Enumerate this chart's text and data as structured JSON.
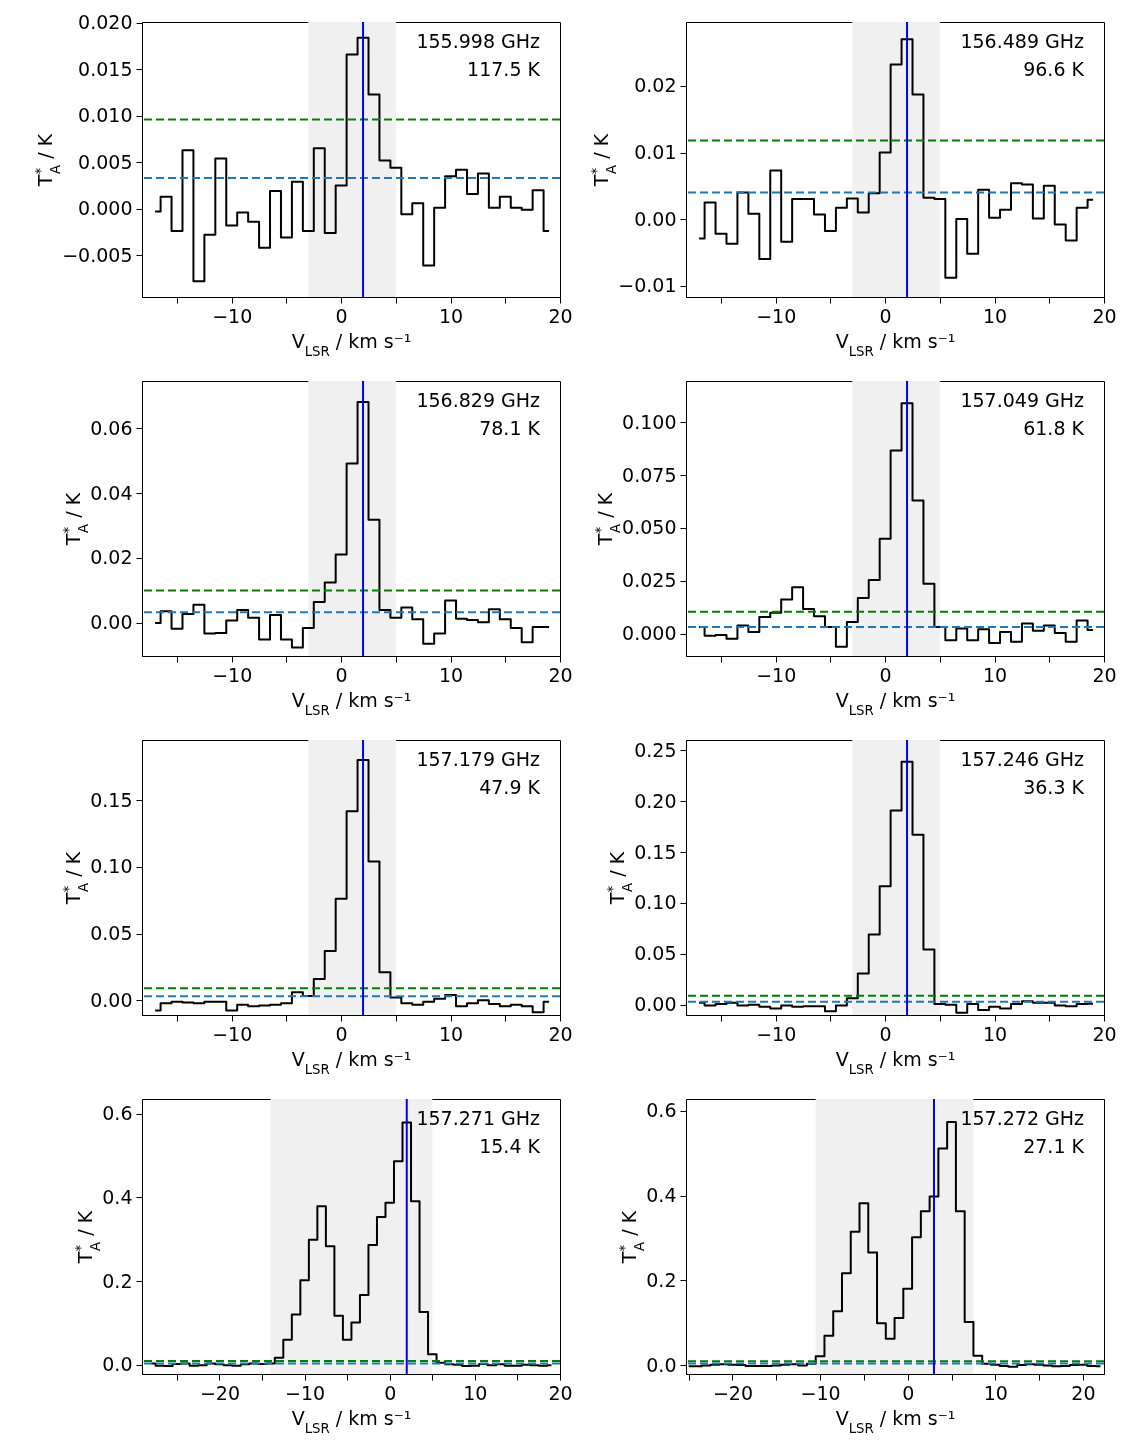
{
  "chart_data": [
    {
      "type": "step",
      "annotations": [
        "155.998 GHz",
        "117.5 K"
      ],
      "xlabel": "V$_{LSR}$ / km s⁻¹",
      "ylabel": "T$^{*}$$_{A}$ / K",
      "x": [
        -17,
        -16,
        -15,
        -14,
        -13,
        -12,
        -11,
        -10,
        -9,
        -8,
        -7,
        -6,
        -5,
        -4,
        -3,
        -2,
        -1,
        0,
        1,
        2,
        3,
        4,
        5,
        6,
        7,
        8,
        9,
        10,
        11,
        12,
        13,
        14,
        15,
        16,
        17,
        18,
        19
      ],
      "series": [
        {
          "color": "#000000",
          "values": [
            -0.0003,
            0.0013,
            -0.0024,
            0.0063,
            -0.0078,
            -0.0028,
            0.0054,
            -0.0018,
            -0.0004,
            -0.0014,
            -0.0042,
            0.0019,
            -0.0031,
            0.0029,
            -0.0024,
            0.0065,
            -0.0026,
            0.0025,
            0.0166,
            0.0184,
            0.0123,
            0.0052,
            0.0044,
            -0.0006,
            0.0006,
            -0.0061,
            0.0001,
            0.0035,
            0.0042,
            0.0016,
            0.0038,
            0.0001,
            0.0013,
            0.0001,
            -0.0001,
            0.002,
            -0.0024
          ]
        }
      ],
      "xlim": [
        -18.2,
        20
      ],
      "ylim": [
        -0.0095,
        0.0201
      ],
      "xticks": [
        {
          "value": -15,
          "label": null
        },
        {
          "value": -10,
          "label": "−10"
        },
        {
          "value": -5,
          "label": null
        },
        0,
        {
          "value": 5,
          "label": null
        },
        10,
        {
          "value": 15,
          "label": null
        },
        20
      ],
      "yticks": [
        {
          "value": -0.005,
          "label": "−0.005"
        },
        {
          "value": 0,
          "label": "0.000"
        },
        {
          "value": 0.005,
          "label": "0.005"
        },
        {
          "value": 0.01,
          "label": "0.010"
        },
        {
          "value": 0.015,
          "label": "0.015"
        },
        {
          "value": 0.02,
          "label": "0.020"
        }
      ],
      "bands": [
        {
          "axis": "x",
          "from": -3,
          "to": 5,
          "color": "#f0f0f0"
        }
      ],
      "ref_lines": [
        {
          "axis": "y",
          "value": 0.0096,
          "color": "#008000",
          "line_style": "dashed"
        },
        {
          "axis": "y",
          "value": 0.0033,
          "color": "#1f77b4",
          "line_style": "dashed"
        },
        {
          "axis": "x",
          "value": 2,
          "color": "#0000ff",
          "line_style": "solid"
        }
      ]
    },
    {
      "type": "step",
      "annotations": [
        "156.489 GHz",
        "96.6 K"
      ],
      "xlabel": "V$_{LSR}$ / km s⁻¹",
      "ylabel": "T$^{*}$$_{A}$ / K",
      "x": [
        -17,
        -16,
        -15,
        -14,
        -13,
        -12,
        -11,
        -10,
        -9,
        -8,
        -7,
        -6,
        -5,
        -4,
        -3,
        -2,
        -1,
        0,
        1,
        2,
        3,
        4,
        5,
        6,
        7,
        8,
        9,
        10,
        11,
        12,
        13,
        14,
        15,
        16,
        17,
        18,
        19
      ],
      "series": [
        {
          "color": "#000000",
          "values": [
            -0.0029,
            0.0025,
            -0.0022,
            -0.0037,
            0.004,
            0.0008,
            -0.006,
            0.0073,
            -0.0034,
            0.003,
            0.003,
            0.0007,
            -0.0018,
            0.0017,
            0.0031,
            0.001,
            0.0039,
            0.01,
            0.0232,
            0.027,
            0.0187,
            0.0032,
            0.003,
            -0.0088,
            0.0,
            -0.0052,
            0.0044,
            0.0002,
            0.0014,
            0.0054,
            0.0052,
            0.0001,
            0.005,
            -0.0008,
            -0.0032,
            0.0017,
            0.0029
          ]
        }
      ],
      "xlim": [
        -18.2,
        20
      ],
      "ylim": [
        -0.0117,
        0.0296
      ],
      "xticks": [
        {
          "value": -15,
          "label": null
        },
        {
          "value": -10,
          "label": "−10"
        },
        {
          "value": -5,
          "label": null
        },
        0,
        {
          "value": 5,
          "label": null
        },
        10,
        {
          "value": 15,
          "label": null
        },
        20
      ],
      "yticks": [
        {
          "value": -0.01,
          "label": "−0.01"
        },
        {
          "value": 0,
          "label": "0.00"
        },
        {
          "value": 0.01,
          "label": "0.01"
        },
        {
          "value": 0.02,
          "label": "0.02"
        }
      ],
      "bands": [
        {
          "axis": "x",
          "from": -3,
          "to": 5,
          "color": "#f0f0f0"
        }
      ],
      "ref_lines": [
        {
          "axis": "y",
          "value": 0.0118,
          "color": "#008000",
          "line_style": "dashed"
        },
        {
          "axis": "y",
          "value": 0.004,
          "color": "#1f77b4",
          "line_style": "dashed"
        },
        {
          "axis": "x",
          "value": 2,
          "color": "#0000ff",
          "line_style": "solid"
        }
      ]
    },
    {
      "type": "step",
      "annotations": [
        "156.829 GHz",
        "78.1 K"
      ],
      "xlabel": "V$_{LSR}$ / km s⁻¹",
      "ylabel": "T$^{*}$$_{A}$ / K",
      "x": [
        -17,
        -16,
        -15,
        -14,
        -13,
        -12,
        -11,
        -10,
        -9,
        -8,
        -7,
        -6,
        -5,
        -4,
        -3,
        -2,
        -1,
        0,
        1,
        2,
        3,
        4,
        5,
        6,
        7,
        8,
        9,
        10,
        11,
        12,
        13,
        14,
        15,
        16,
        17,
        18,
        19
      ],
      "series": [
        {
          "color": "#000000",
          "values": [
            0.0,
            0.0036,
            -0.0018,
            0.0027,
            0.0056,
            -0.0033,
            -0.0031,
            0.0007,
            0.004,
            0.0016,
            -0.0051,
            0.0024,
            -0.0051,
            -0.0076,
            -0.0016,
            0.0064,
            0.0124,
            0.0211,
            0.0491,
            0.068,
            0.0318,
            0.004,
            0.0016,
            0.0047,
            0.0011,
            -0.0064,
            -0.0033,
            0.0069,
            0.0013,
            0.0009,
            0.0002,
            0.0042,
            0.0011,
            -0.0016,
            -0.006,
            -0.0013,
            -0.0013
          ]
        }
      ],
      "xlim": [
        -18.2,
        20
      ],
      "ylim": [
        -0.0102,
        0.0745
      ],
      "xticks": [
        {
          "value": -15,
          "label": null
        },
        {
          "value": -10,
          "label": "−10"
        },
        {
          "value": -5,
          "label": null
        },
        0,
        {
          "value": 5,
          "label": null
        },
        10,
        {
          "value": 15,
          "label": null
        },
        20
      ],
      "yticks": [
        {
          "value": 0,
          "label": "0.00"
        },
        {
          "value": 0.02,
          "label": "0.02"
        },
        {
          "value": 0.04,
          "label": "0.04"
        },
        {
          "value": 0.06,
          "label": "0.06"
        }
      ],
      "bands": [
        {
          "axis": "x",
          "from": -3,
          "to": 5,
          "color": "#f0f0f0"
        }
      ],
      "ref_lines": [
        {
          "axis": "y",
          "value": 0.01,
          "color": "#008000",
          "line_style": "dashed"
        },
        {
          "axis": "y",
          "value": 0.0033,
          "color": "#1f77b4",
          "line_style": "dashed"
        },
        {
          "axis": "x",
          "value": 2,
          "color": "#0000ff",
          "line_style": "solid"
        }
      ]
    },
    {
      "type": "step",
      "annotations": [
        "157.049 GHz",
        "61.8 K"
      ],
      "xlabel": "V$_{LSR}$ / km s⁻¹",
      "ylabel": "T$^{*}$$_{A}$ / K",
      "x": [
        -17,
        -16,
        -15,
        -14,
        -13,
        -12,
        -11,
        -10,
        -9,
        -8,
        -7,
        -6,
        -5,
        -4,
        -3,
        -2,
        -1,
        0,
        1,
        2,
        3,
        4,
        5,
        6,
        7,
        8,
        9,
        10,
        11,
        12,
        13,
        14,
        15,
        16,
        17,
        18,
        19
      ],
      "series": [
        {
          "color": "#000000",
          "values": [
            0.0031,
            -0.001,
            -0.0007,
            -0.0024,
            0.0038,
            0.0007,
            0.0079,
            0.0099,
            0.0161,
            0.0219,
            0.0116,
            0.0082,
            0.0031,
            -0.0062,
            0.0055,
            0.0168,
            0.0253,
            0.0449,
            0.0866,
            0.109,
            0.063,
            0.0236,
            0.0031,
            -0.0031,
            0.0024,
            -0.0031,
            0.0021,
            -0.0045,
            0.0007,
            -0.0038,
            0.0048,
            0.0014,
            0.0038,
            0.0003,
            -0.0038,
            0.0062,
            0.0017
          ]
        }
      ],
      "xlim": [
        -18.2,
        20
      ],
      "ylim": [
        -0.0106,
        0.1195
      ],
      "xticks": [
        {
          "value": -15,
          "label": null
        },
        {
          "value": -10,
          "label": "−10"
        },
        {
          "value": -5,
          "label": null
        },
        0,
        {
          "value": 5,
          "label": null
        },
        10,
        {
          "value": 15,
          "label": null
        },
        20
      ],
      "yticks": [
        {
          "value": 0,
          "label": "0.000"
        },
        {
          "value": 0.025,
          "label": "0.025"
        },
        {
          "value": 0.05,
          "label": "0.050"
        },
        {
          "value": 0.075,
          "label": "0.075"
        },
        {
          "value": 0.1,
          "label": "0.100"
        }
      ],
      "bands": [
        {
          "axis": "x",
          "from": -3,
          "to": 5,
          "color": "#f0f0f0"
        }
      ],
      "ref_lines": [
        {
          "axis": "y",
          "value": 0.0103,
          "color": "#008000",
          "line_style": "dashed"
        },
        {
          "axis": "y",
          "value": 0.0031,
          "color": "#1f77b4",
          "line_style": "dashed"
        },
        {
          "axis": "x",
          "value": 2,
          "color": "#0000ff",
          "line_style": "solid"
        }
      ]
    },
    {
      "type": "step",
      "annotations": [
        "157.179 GHz",
        "47.9 K"
      ],
      "xlabel": "V$_{LSR}$ / km s⁻¹",
      "ylabel": "T$^{*}$$_{A}$ / K",
      "x": [
        -17,
        -16,
        -15,
        -14,
        -13,
        -12,
        -11,
        -10,
        -9,
        -8,
        -7,
        -6,
        -5,
        -4,
        -3,
        -2,
        -1,
        0,
        1,
        2,
        3,
        4,
        5,
        6,
        7,
        8,
        9,
        10,
        11,
        12,
        13,
        14,
        15,
        16,
        17,
        18,
        19
      ],
      "series": [
        {
          "color": "#000000",
          "values": [
            -0.0077,
            -0.0022,
            -0.0011,
            -0.0017,
            -0.0022,
            -0.0011,
            -0.0011,
            -0.0077,
            -0.0033,
            -0.0044,
            -0.0039,
            -0.0033,
            -0.0022,
            0.0061,
            0.0033,
            0.016,
            0.037,
            0.076,
            0.1417,
            0.18,
            0.104,
            0.021,
            0.0022,
            -0.0022,
            -0.0033,
            -0.0011,
            0.0011,
            0.0039,
            -0.0044,
            -0.0022,
            0.0,
            -0.0028,
            -0.0044,
            -0.0033,
            -0.0044,
            -0.009,
            -0.001
          ]
        }
      ],
      "xlim": [
        -18.2,
        20
      ],
      "ylim": [
        -0.011,
        0.195
      ],
      "xticks": [
        {
          "value": -15,
          "label": null
        },
        {
          "value": -10,
          "label": "−10"
        },
        {
          "value": -5,
          "label": null
        },
        0,
        {
          "value": 5,
          "label": null
        },
        10,
        {
          "value": 15,
          "label": null
        },
        20
      ],
      "yticks": [
        {
          "value": 0,
          "label": "0.00"
        },
        {
          "value": 0.05,
          "label": "0.05"
        },
        {
          "value": 0.1,
          "label": "0.10"
        },
        {
          "value": 0.15,
          "label": "0.15"
        }
      ],
      "bands": [
        {
          "axis": "x",
          "from": -3,
          "to": 5,
          "color": "#f0f0f0"
        }
      ],
      "ref_lines": [
        {
          "axis": "y",
          "value": 0.009,
          "color": "#008000",
          "line_style": "dashed"
        },
        {
          "axis": "y",
          "value": 0.003,
          "color": "#1f77b4",
          "line_style": "dashed"
        },
        {
          "axis": "x",
          "value": 2,
          "color": "#0000ff",
          "line_style": "solid"
        }
      ]
    },
    {
      "type": "step",
      "annotations": [
        "157.246 GHz",
        "36.3 K"
      ],
      "xlabel": "V$_{LSR}$ / km s⁻¹",
      "ylabel": "T$^{*}$$_{A}$ / K",
      "x": [
        -17,
        -16,
        -15,
        -14,
        -13,
        -12,
        -11,
        -10,
        -9,
        -8,
        -7,
        -6,
        -5,
        -4,
        -3,
        -2,
        -1,
        0,
        1,
        2,
        3,
        4,
        5,
        6,
        7,
        8,
        9,
        10,
        11,
        12,
        13,
        14,
        15,
        16,
        17,
        18,
        19
      ],
      "series": [
        {
          "color": "#000000",
          "values": [
            0.002,
            -0.0007,
            0.0007,
            0.002,
            -0.0007,
            0.0,
            -0.002,
            -0.0036,
            -0.0007,
            -0.002,
            -0.0014,
            -0.0014,
            -0.0064,
            -0.0007,
            0.0064,
            0.0307,
            0.069,
            0.1164,
            0.1907,
            0.2386,
            0.167,
            0.0543,
            0.0007,
            0.0,
            -0.0079,
            0.0007,
            -0.005,
            -0.002,
            -0.0036,
            0.0007,
            0.0036,
            0.002,
            0.002,
            -0.0007,
            -0.0014,
            0.0007,
            0.001
          ]
        }
      ],
      "xlim": [
        -18.2,
        20
      ],
      "ylim": [
        -0.01,
        0.26
      ],
      "xticks": [
        {
          "value": -15,
          "label": null
        },
        {
          "value": -10,
          "label": "−10"
        },
        {
          "value": -5,
          "label": null
        },
        0,
        {
          "value": 5,
          "label": null
        },
        10,
        {
          "value": 15,
          "label": null
        },
        20
      ],
      "yticks": [
        {
          "value": 0,
          "label": "0.00"
        },
        {
          "value": 0.05,
          "label": "0.05"
        },
        {
          "value": 0.1,
          "label": "0.10"
        },
        {
          "value": 0.15,
          "label": "0.15"
        },
        {
          "value": 0.2,
          "label": "0.20"
        },
        {
          "value": 0.25,
          "label": "0.25"
        }
      ],
      "bands": [
        {
          "axis": "x",
          "from": -3,
          "to": 5,
          "color": "#f0f0f0"
        }
      ],
      "ref_lines": [
        {
          "axis": "y",
          "value": 0.009,
          "color": "#008000",
          "line_style": "dashed"
        },
        {
          "axis": "y",
          "value": 0.003,
          "color": "#1f77b4",
          "line_style": "dashed"
        },
        {
          "axis": "x",
          "value": 2,
          "color": "#0000ff",
          "line_style": "solid"
        }
      ]
    },
    {
      "type": "step",
      "annotations": [
        "157.271 GHz",
        "15.4 K"
      ],
      "xlabel": "V$_{LSR}$ / km s⁻¹",
      "ylabel": "T$^{*}$$_{A}$ / K",
      "x": [
        -28,
        -27,
        -26,
        -25,
        -24,
        -23,
        -22,
        -21,
        -20,
        -19,
        -18,
        -17,
        -16,
        -15,
        -14,
        -13,
        -12,
        -11,
        -10,
        -9,
        -8,
        -7,
        -6,
        -5,
        -4,
        -3,
        -2,
        -1,
        0,
        1,
        2,
        3,
        4,
        5,
        6,
        7,
        8,
        9,
        10,
        11,
        12,
        13,
        14,
        15,
        16,
        17,
        18,
        19
      ],
      "series": [
        {
          "color": "#000000",
          "values": [
            0.003,
            -0.002,
            -0.003,
            0.002,
            0.003,
            -0.002,
            -0.001,
            0.003,
            0.001,
            -0.001,
            -0.002,
            0.001,
            0.003,
            0.002,
            0.003,
            0.017,
            0.06,
            0.12,
            0.202,
            0.299,
            0.379,
            0.283,
            0.117,
            0.06,
            0.101,
            0.167,
            0.286,
            0.353,
            0.387,
            0.486,
            0.579,
            0.391,
            0.126,
            0.025,
            0.005,
            0.001,
            0.0,
            -0.003,
            -0.002,
            0.002,
            -0.001,
            0.001,
            -0.002,
            -0.002,
            0.0,
            -0.001,
            -0.002,
            -0.001
          ]
        }
      ],
      "xlim": [
        -29.1,
        20
      ],
      "ylim": [
        -0.022,
        0.635
      ],
      "xticks": [
        {
          "value": -25,
          "label": null
        },
        {
          "value": -20,
          "label": "−20"
        },
        {
          "value": -15,
          "label": null
        },
        {
          "value": -10,
          "label": "−10"
        },
        {
          "value": -5,
          "label": null
        },
        0,
        {
          "value": 5,
          "label": null
        },
        10,
        {
          "value": 15,
          "label": null
        },
        20
      ],
      "yticks": [
        {
          "value": 0,
          "label": "0.0"
        },
        {
          "value": 0.2,
          "label": "0.2"
        },
        {
          "value": 0.4,
          "label": "0.4"
        },
        {
          "value": 0.6,
          "label": "0.6"
        }
      ],
      "bands": [
        {
          "axis": "x",
          "from": -14,
          "to": 5,
          "color": "#f0f0f0"
        }
      ],
      "ref_lines": [
        {
          "axis": "y",
          "value": 0.009,
          "color": "#008000",
          "line_style": "dashed"
        },
        {
          "axis": "y",
          "value": 0.003,
          "color": "#1f77b4",
          "line_style": "dashed"
        },
        {
          "axis": "x",
          "value": 2,
          "color": "#0000ff",
          "line_style": "solid"
        }
      ]
    },
    {
      "type": "step",
      "annotations": [
        "157.272 GHz",
        "27.1 K"
      ],
      "xlabel": "V$_{LSR}$ / km s⁻¹",
      "ylabel": "T$^{*}$$_{A}$ / K",
      "x": [
        -25,
        -24,
        -23,
        -22,
        -21,
        -20,
        -19,
        -18,
        -17,
        -16,
        -15,
        -14,
        -13,
        -12,
        -11,
        -10,
        -9,
        -8,
        -7,
        -6,
        -5,
        -4,
        -3,
        -2,
        -1,
        0,
        1,
        2,
        3,
        4,
        5,
        6,
        7,
        8,
        9,
        10,
        11,
        12,
        13,
        14,
        15,
        16,
        17,
        18,
        19,
        20,
        21,
        22
      ],
      "series": [
        {
          "color": "#000000",
          "values": [
            -0.003,
            -0.003,
            -0.001,
            0.001,
            0.002,
            0.001,
            0.0,
            -0.002,
            -0.002,
            -0.002,
            -0.001,
            0.001,
            0.002,
            -0.001,
            0.003,
            0.021,
            0.069,
            0.127,
            0.217,
            0.315,
            0.382,
            0.266,
            0.099,
            0.062,
            0.111,
            0.18,
            0.302,
            0.363,
            0.398,
            0.511,
            0.574,
            0.363,
            0.102,
            0.022,
            0.003,
            0.001,
            -0.002,
            -0.004,
            0.0,
            0.002,
            0.001,
            -0.001,
            -0.003,
            -0.002,
            0.0,
            0.001,
            -0.002,
            -0.003
          ]
        }
      ],
      "xlim": [
        -25.3,
        22.4
      ],
      "ylim": [
        -0.021,
        0.628
      ],
      "xticks": [
        {
          "value": -25,
          "label": null
        },
        {
          "value": -20,
          "label": "−20"
        },
        {
          "value": -15,
          "label": null
        },
        {
          "value": -10,
          "label": "−10"
        },
        {
          "value": -5,
          "label": null
        },
        0,
        {
          "value": 5,
          "label": null
        },
        10,
        {
          "value": 15,
          "label": null
        },
        20
      ],
      "yticks": [
        {
          "value": 0,
          "label": "0.0"
        },
        {
          "value": 0.2,
          "label": "0.2"
        },
        {
          "value": 0.4,
          "label": "0.4"
        },
        {
          "value": 0.6,
          "label": "0.6"
        }
      ],
      "bands": [
        {
          "axis": "x",
          "from": -10.5,
          "to": 7.5,
          "color": "#f0f0f0"
        }
      ],
      "ref_lines": [
        {
          "axis": "y",
          "value": 0.009,
          "color": "#008000",
          "line_style": "dashed"
        },
        {
          "axis": "y",
          "value": 0.004,
          "color": "#1f77b4",
          "line_style": "dashed"
        },
        {
          "axis": "x",
          "value": 3,
          "color": "#0000ff",
          "line_style": "solid"
        }
      ]
    }
  ]
}
